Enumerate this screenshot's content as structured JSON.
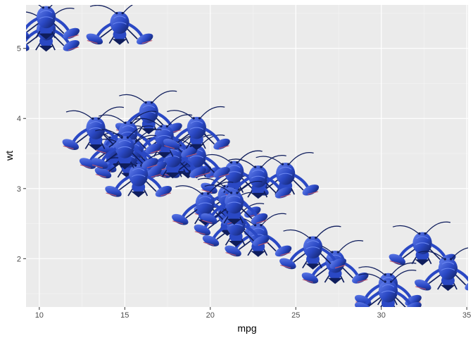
{
  "chart_data": {
    "type": "scatter",
    "title": "",
    "xlabel": "mpg",
    "ylabel": "wt",
    "xlim": [
      9.225,
      35.075
    ],
    "ylim": [
      1.31,
      5.62
    ],
    "x_ticks": [
      10,
      15,
      20,
      25,
      30,
      35
    ],
    "y_ticks": [
      2,
      3,
      4,
      5
    ],
    "grid": true,
    "legend": "none",
    "marker": "blue-lobster-image",
    "colors": {
      "panel": "#ebebeb",
      "grid_major": "#ffffff",
      "grid_minor": "#f5f5f5",
      "tick": "#333333",
      "lobster_dark": "#0f1d5c",
      "lobster_mid": "#2a48c4",
      "lobster_light": "#6a86f0",
      "lobster_accent": "#c0566a"
    },
    "series": [
      {
        "x": [
          21.0,
          21.0,
          22.8,
          21.4,
          18.7,
          18.1,
          14.3,
          24.4,
          22.8,
          19.2,
          17.8,
          16.4,
          17.3,
          15.2,
          10.4,
          10.4,
          14.7,
          32.4,
          30.4,
          33.9,
          21.5,
          15.5,
          15.2,
          13.3,
          19.2,
          27.3,
          26.0,
          30.4,
          15.8,
          19.7,
          15.0,
          21.4
        ],
        "y": [
          2.62,
          2.875,
          2.32,
          3.215,
          3.44,
          3.46,
          3.57,
          3.19,
          3.15,
          3.44,
          3.44,
          4.07,
          3.73,
          3.78,
          5.25,
          5.424,
          5.345,
          2.2,
          1.615,
          1.835,
          2.465,
          3.52,
          3.435,
          3.84,
          3.845,
          1.935,
          2.14,
          1.513,
          3.17,
          2.77,
          3.57,
          2.78
        ]
      }
    ]
  }
}
